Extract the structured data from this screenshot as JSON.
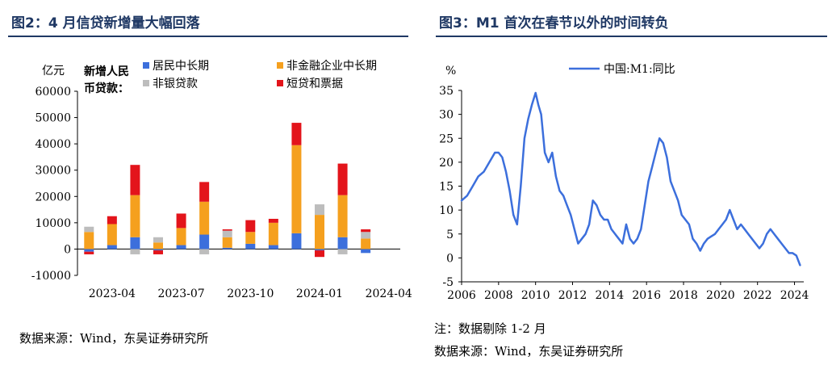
{
  "left": {
    "title": "图2：4 月信贷新增量大幅回落",
    "source": "数据来源：Wind，东吴证券研究所",
    "chart_data": {
      "type": "bar",
      "stacked": true,
      "ylabel": "亿元",
      "ylim": [
        -10000,
        60000
      ],
      "yticks": [
        -10000,
        0,
        10000,
        20000,
        30000,
        40000,
        50000,
        60000
      ],
      "ytick_labels": [
        "-10000",
        "0",
        "10000",
        "20000",
        "30000",
        "40000",
        "50000",
        "60000"
      ],
      "categories": [
        "2023-03",
        "2023-04",
        "2023-05",
        "2023-06",
        "2023-07",
        "2023-08",
        "2023-09",
        "2023-10",
        "2023-11",
        "2023-12",
        "2024-01",
        "2024-02",
        "2024-03",
        "2024-04"
      ],
      "xtick_labels": [
        "2023-04",
        "2023-07",
        "2023-10",
        "2024-01",
        "2024-04"
      ],
      "xtick_indices": [
        1,
        4,
        7,
        10,
        13
      ],
      "legend_title": "新增人民币贷款：",
      "grid": false,
      "series": [
        {
          "name": "居民中长期",
          "color": "#3c6fdc",
          "values": [
            -1000,
            1500,
            4500,
            -500,
            1500,
            5500,
            500,
            2000,
            1500,
            6000,
            -500,
            4500,
            -1500,
            0
          ]
        },
        {
          "name": "非金融企业中长期",
          "color": "#f5a01e",
          "values": [
            6500,
            8000,
            16000,
            2500,
            6500,
            12500,
            4000,
            4500,
            8500,
            33500,
            13000,
            16000,
            4000,
            0
          ]
        },
        {
          "name": "非银贷款",
          "color": "#bdbdbd",
          "values": [
            2000,
            0,
            -2000,
            2000,
            0,
            -2000,
            2500,
            0,
            0,
            0,
            4000,
            -2000,
            2500,
            0
          ]
        },
        {
          "name": "短贷和票据",
          "color": "#e3141b",
          "values": [
            -1000,
            3000,
            11500,
            -1500,
            5500,
            7500,
            500,
            4500,
            1500,
            8500,
            -2500,
            12000,
            1000,
            0
          ]
        }
      ]
    }
  },
  "right": {
    "title": "图3：M1 首次在春节以外的时间转负",
    "note": "注：数据剔除 1-2 月",
    "source": "数据来源：Wind，东吴证券研究所",
    "chart_data": {
      "type": "line",
      "ylabel": "%",
      "ylim": [
        -5,
        35
      ],
      "yticks": [
        -5,
        0,
        5,
        10,
        15,
        20,
        25,
        30,
        35
      ],
      "ytick_labels": [
        "-5",
        "0",
        "5",
        "10",
        "15",
        "20",
        "25",
        "30",
        "35"
      ],
      "xlim": [
        2006,
        2024.5
      ],
      "xticks": [
        2006,
        2008,
        2010,
        2012,
        2014,
        2016,
        2018,
        2020,
        2022,
        2024
      ],
      "xtick_labels": [
        "2006",
        "2008",
        "2010",
        "2012",
        "2014",
        "2016",
        "2018",
        "2020",
        "2022",
        "2024"
      ],
      "grid": false,
      "series": [
        {
          "name": "中国:M1:同比",
          "color": "#3c6fdc",
          "x": [
            2006.0,
            2006.3,
            2006.6,
            2006.9,
            2007.2,
            2007.5,
            2007.8,
            2008.0,
            2008.2,
            2008.4,
            2008.6,
            2008.8,
            2009.0,
            2009.2,
            2009.4,
            2009.6,
            2009.8,
            2010.0,
            2010.15,
            2010.3,
            2010.5,
            2010.7,
            2010.9,
            2011.1,
            2011.3,
            2011.5,
            2011.7,
            2011.9,
            2012.1,
            2012.3,
            2012.5,
            2012.7,
            2012.9,
            2013.1,
            2013.3,
            2013.5,
            2013.7,
            2013.9,
            2014.1,
            2014.3,
            2014.5,
            2014.7,
            2014.9,
            2015.1,
            2015.3,
            2015.5,
            2015.7,
            2015.9,
            2016.1,
            2016.3,
            2016.5,
            2016.7,
            2016.9,
            2017.1,
            2017.3,
            2017.5,
            2017.7,
            2017.9,
            2018.1,
            2018.3,
            2018.5,
            2018.7,
            2018.9,
            2019.1,
            2019.3,
            2019.5,
            2019.7,
            2019.9,
            2020.1,
            2020.3,
            2020.5,
            2020.7,
            2020.9,
            2021.1,
            2021.3,
            2021.5,
            2021.7,
            2021.9,
            2022.1,
            2022.3,
            2022.5,
            2022.7,
            2022.9,
            2023.1,
            2023.3,
            2023.5,
            2023.7,
            2023.9,
            2024.1,
            2024.3
          ],
          "y": [
            12,
            13,
            15,
            17,
            18,
            20,
            22,
            22,
            21,
            18,
            14,
            9,
            7,
            15,
            25,
            29,
            32,
            34.5,
            32,
            30,
            22,
            20,
            22,
            17,
            14,
            13,
            11,
            9,
            6,
            3,
            4,
            5,
            7,
            12,
            11,
            9,
            8,
            8,
            6,
            5,
            4,
            3,
            7,
            4,
            3,
            4,
            6,
            11,
            16,
            19,
            22,
            25,
            24,
            21,
            16,
            14,
            12,
            9,
            8,
            7,
            4,
            3,
            1.5,
            3,
            4,
            4.5,
            5,
            6,
            7,
            8,
            10,
            8,
            6,
            7,
            6,
            5,
            4,
            3,
            2,
            3,
            5,
            6,
            5,
            4,
            3,
            2,
            1,
            1,
            0.5,
            -1.5
          ]
        }
      ]
    }
  }
}
